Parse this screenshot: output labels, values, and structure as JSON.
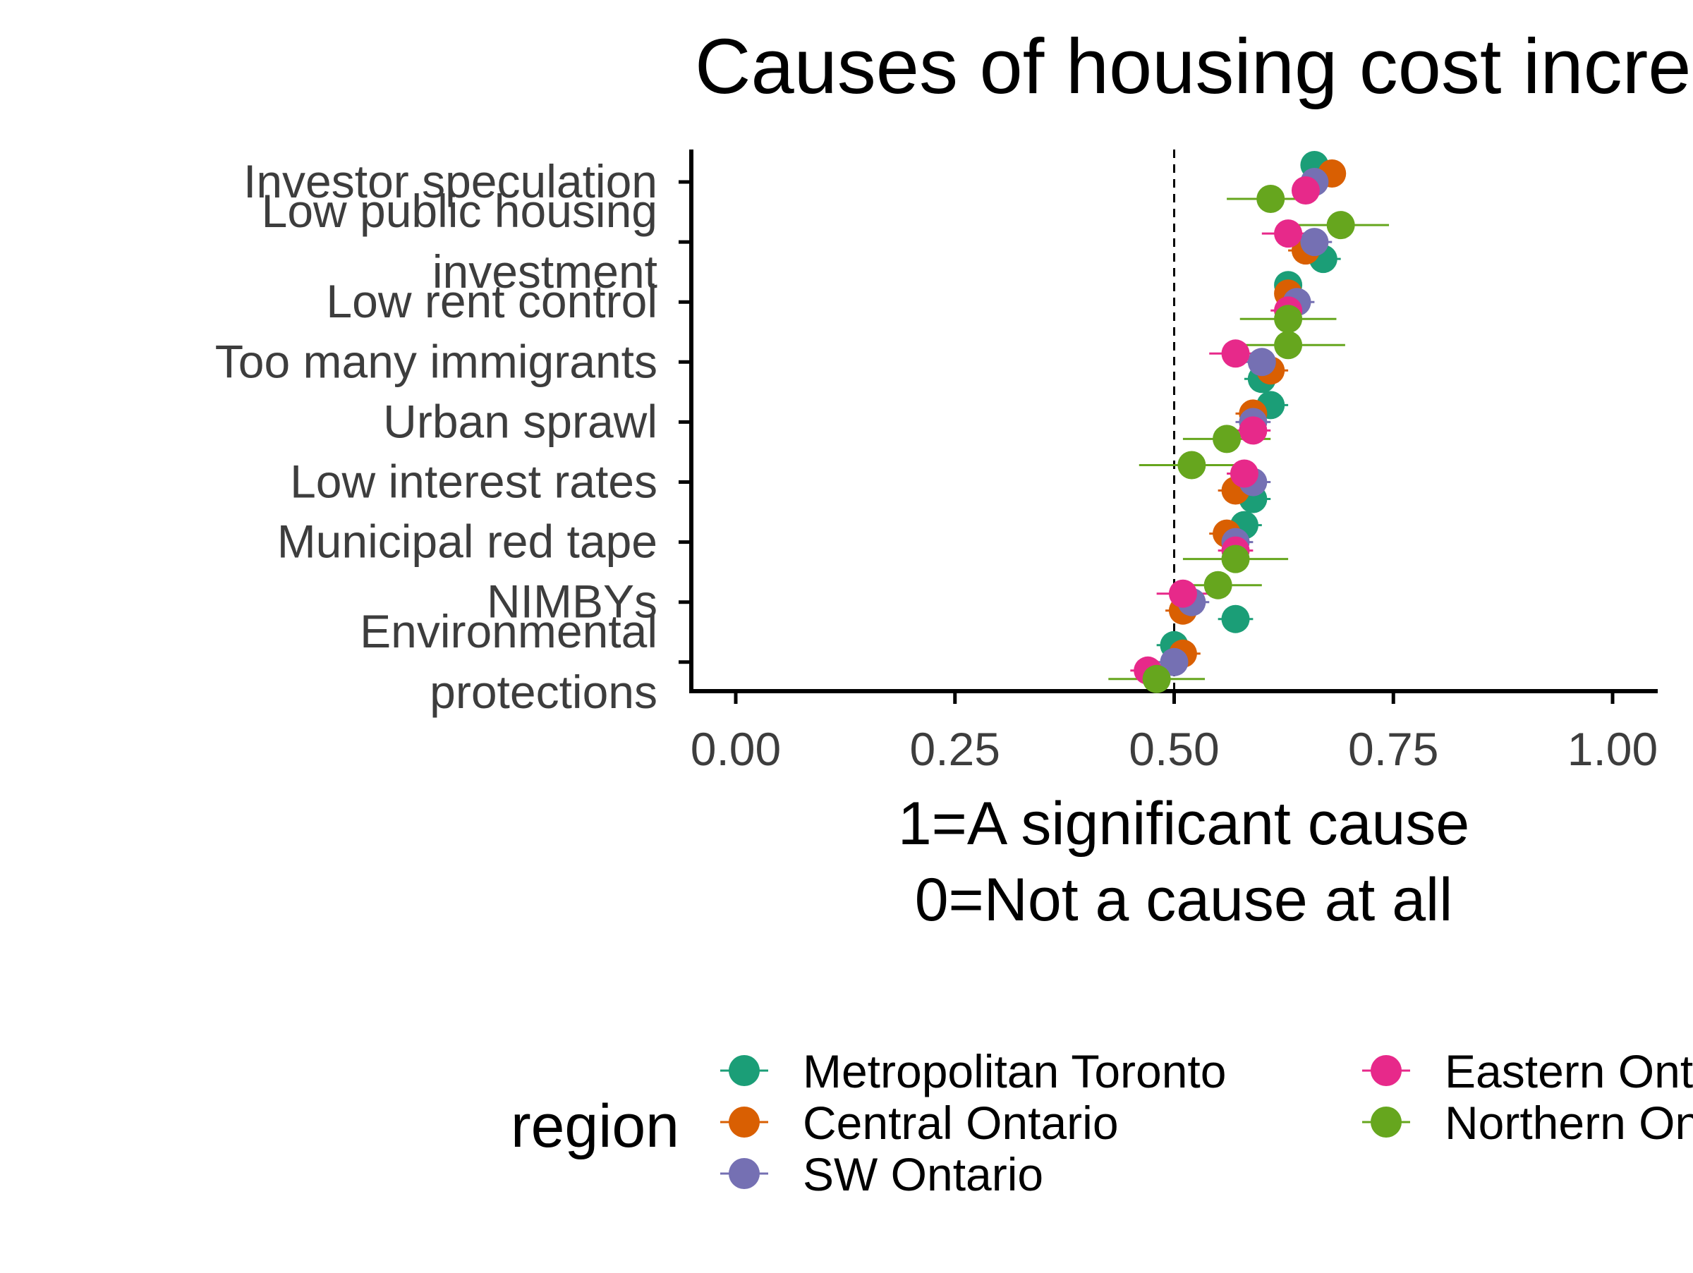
{
  "chart_data": {
    "type": "scatter",
    "title": "Causes of housing cost increases",
    "xlabel_lines": [
      "1=A significant cause",
      "0=Not a cause at all"
    ],
    "ylabel": "",
    "xlim": [
      0,
      1
    ],
    "x_ticks": [
      "0.00",
      "0.25",
      "0.50",
      "0.75",
      "1.00"
    ],
    "reference_line": 0.5,
    "categories": [
      [
        "Investor speculation"
      ],
      [
        "Low public housing",
        "investment"
      ],
      [
        "Low rent control"
      ],
      [
        "Too many immigrants"
      ],
      [
        "Urban sprawl"
      ],
      [
        "Low interest rates"
      ],
      [
        "Municipal red tape"
      ],
      [
        "NIMBYs"
      ],
      [
        "Environmental",
        "protections"
      ]
    ],
    "legend": {
      "title": "region",
      "placement": "bottom"
    },
    "series": [
      {
        "name": "Metropolitan Toronto",
        "color": "#1b9e77",
        "values": [
          0.66,
          0.67,
          0.63,
          0.6,
          0.61,
          0.59,
          0.58,
          0.57,
          0.5
        ],
        "error": [
          0.015,
          0.02,
          0.015,
          0.02,
          0.02,
          0.02,
          0.02,
          0.02,
          0.02
        ]
      },
      {
        "name": "Central Ontario",
        "color": "#d95f02",
        "values": [
          0.68,
          0.65,
          0.63,
          0.61,
          0.59,
          0.57,
          0.56,
          0.51,
          0.51
        ],
        "error": [
          0.015,
          0.02,
          0.015,
          0.02,
          0.02,
          0.02,
          0.02,
          0.02,
          0.02
        ]
      },
      {
        "name": "SW Ontario",
        "color": "#7570b3",
        "values": [
          0.66,
          0.66,
          0.64,
          0.6,
          0.59,
          0.59,
          0.57,
          0.52,
          0.5
        ],
        "error": [
          0.015,
          0.02,
          0.02,
          0.02,
          0.02,
          0.02,
          0.02,
          0.02,
          0.02
        ]
      },
      {
        "name": "Eastern Ontario",
        "color": "#e7298a",
        "values": [
          0.65,
          0.63,
          0.63,
          0.57,
          0.59,
          0.58,
          0.57,
          0.51,
          0.47
        ],
        "error": [
          0.015,
          0.03,
          0.02,
          0.03,
          0.02,
          0.02,
          0.02,
          0.03,
          0.02
        ]
      },
      {
        "name": "Northern Ontario",
        "color": "#66a61e",
        "values": [
          0.61,
          0.69,
          0.63,
          0.63,
          0.56,
          0.52,
          0.57,
          0.55,
          0.48
        ],
        "error": [
          0.05,
          0.055,
          0.055,
          0.065,
          0.05,
          0.06,
          0.06,
          0.05,
          0.055
        ]
      }
    ]
  }
}
